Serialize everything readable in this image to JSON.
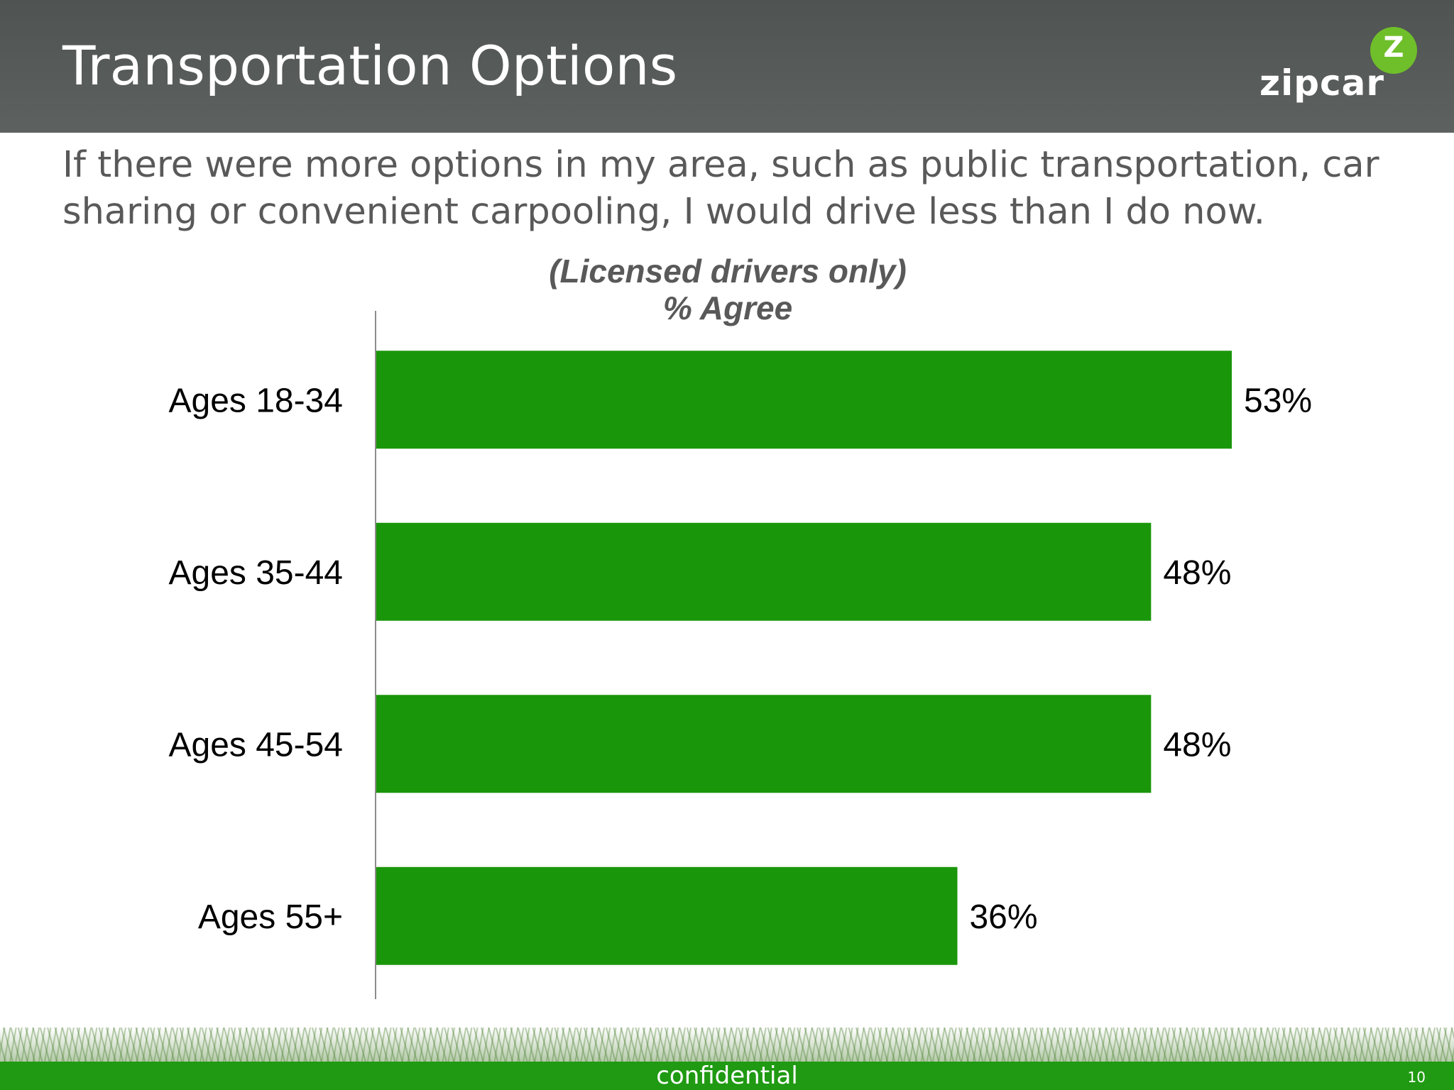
{
  "slide": {
    "title": "Transportation Options",
    "subtitle": "If there were more options in my area, such as public transportation, car sharing or convenient carpooling, I would drive less than I do now.",
    "logo": {
      "text": "zipcar",
      "mark": "Z"
    },
    "footer": {
      "text": "confidential",
      "page_number": "10"
    }
  },
  "chart_data": {
    "type": "bar",
    "orientation": "horizontal",
    "title": "(Licensed drivers only)",
    "subtitle": "% Agree",
    "categories": [
      "Ages 18-34",
      "Ages 35-44",
      "Ages 45-54",
      "Ages 55+"
    ],
    "values": [
      53,
      48,
      48,
      36
    ],
    "value_labels": [
      "53%",
      "48%",
      "48%",
      "36%"
    ],
    "xlim": [
      0,
      60
    ],
    "grid": false,
    "bar_color": "#1a960a",
    "axis_color": "#8c8c8c"
  },
  "colors": {
    "header_bg": "#545856",
    "subtitle_text": "#595959",
    "footer_bar": "#1f9a12",
    "logo_green": "#6fbf2a"
  }
}
